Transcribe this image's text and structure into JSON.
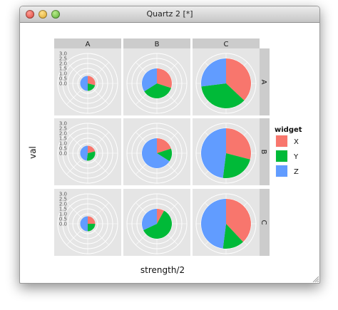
{
  "window": {
    "title": "Quartz 2 [*]"
  },
  "chart_data": {
    "type": "pie",
    "xlabel": "strength/2",
    "ylabel": "val",
    "legend": {
      "title": "widget",
      "position": "right",
      "entries": [
        "X",
        "Y",
        "Z"
      ]
    },
    "colors": {
      "X": "#f8766d",
      "Y": "#00ba38",
      "Z": "#619cff"
    },
    "column_facets": [
      "A",
      "B",
      "C"
    ],
    "row_facets": [
      "A",
      "B",
      "C"
    ],
    "ytick_labels": [
      "0.0",
      "0.5",
      "1.0",
      "1.5",
      "2.0",
      "2.5",
      "3.0"
    ],
    "ylim": [
      0,
      3
    ],
    "panel_background": "#e5e5e5",
    "strip_background": "#cccccc",
    "panels": [
      {
        "row": "A",
        "col": "A",
        "radius": 0.75,
        "slices": [
          {
            "widget": "X",
            "share": 0.29
          },
          {
            "widget": "Y",
            "share": 0.21
          },
          {
            "widget": "Z",
            "share": 0.5
          }
        ]
      },
      {
        "row": "A",
        "col": "B",
        "radius": 1.5,
        "slices": [
          {
            "widget": "X",
            "share": 0.3
          },
          {
            "widget": "Y",
            "share": 0.36
          },
          {
            "widget": "Z",
            "share": 0.34
          }
        ]
      },
      {
        "row": "A",
        "col": "C",
        "radius": 2.5,
        "slices": [
          {
            "widget": "X",
            "share": 0.37
          },
          {
            "widget": "Y",
            "share": 0.36
          },
          {
            "widget": "Z",
            "share": 0.27
          }
        ]
      },
      {
        "row": "B",
        "col": "A",
        "radius": 0.75,
        "slices": [
          {
            "widget": "X",
            "share": 0.21
          },
          {
            "widget": "Y",
            "share": 0.31
          },
          {
            "widget": "Z",
            "share": 0.48
          }
        ]
      },
      {
        "row": "B",
        "col": "B",
        "radius": 1.5,
        "slices": [
          {
            "widget": "X",
            "share": 0.2
          },
          {
            "widget": "Y",
            "share": 0.14
          },
          {
            "widget": "Z",
            "share": 0.66
          }
        ]
      },
      {
        "row": "B",
        "col": "C",
        "radius": 2.5,
        "slices": [
          {
            "widget": "X",
            "share": 0.29
          },
          {
            "widget": "Y",
            "share": 0.23
          },
          {
            "widget": "Z",
            "share": 0.48
          }
        ]
      },
      {
        "row": "C",
        "col": "A",
        "radius": 0.75,
        "slices": [
          {
            "widget": "X",
            "share": 0.25
          },
          {
            "widget": "Y",
            "share": 0.25
          },
          {
            "widget": "Z",
            "share": 0.5
          }
        ]
      },
      {
        "row": "C",
        "col": "B",
        "radius": 1.5,
        "slices": [
          {
            "widget": "X",
            "share": 0.08
          },
          {
            "widget": "Y",
            "share": 0.6
          },
          {
            "widget": "Z",
            "share": 0.32
          }
        ]
      },
      {
        "row": "C",
        "col": "C",
        "radius": 2.5,
        "slices": [
          {
            "widget": "X",
            "share": 0.38
          },
          {
            "widget": "Y",
            "share": 0.14
          },
          {
            "widget": "Z",
            "share": 0.48
          }
        ]
      }
    ]
  }
}
